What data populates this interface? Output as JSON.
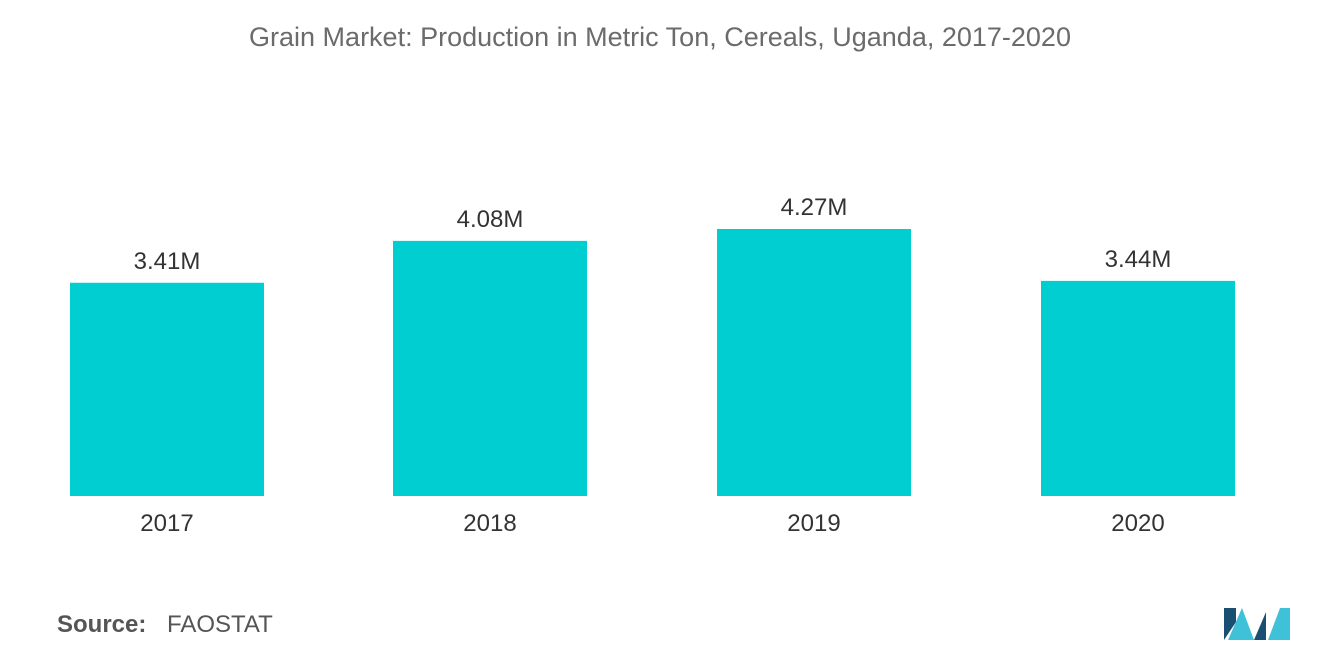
{
  "chart_data": {
    "type": "bar",
    "title": "Grain Market: Production in Metric Ton, Cereals, Uganda, 2017-2020",
    "categories": [
      "2017",
      "2018",
      "2019",
      "2020"
    ],
    "values": [
      3.41,
      4.08,
      4.27,
      3.44
    ],
    "value_labels": [
      "3.41M",
      "4.08M",
      "4.27M",
      "3.44M"
    ],
    "unit": "M",
    "ylim": [
      0,
      4.27
    ],
    "grid": false,
    "legend": "none",
    "bar_color": "#00CED1"
  },
  "source": {
    "label": "Source:",
    "value": "FAOSTAT"
  },
  "logo": {
    "icon": "mordor-intelligence-logo-icon",
    "color_dark": "#1B4F72",
    "color_light": "#3FC1D8"
  }
}
